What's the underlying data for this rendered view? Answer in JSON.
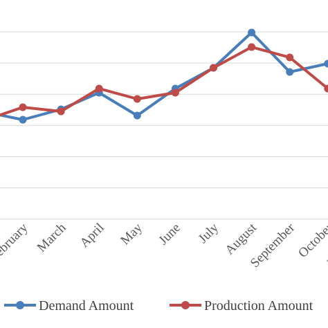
{
  "chart_data": {
    "type": "line",
    "title": "",
    "xlabel": "",
    "ylabel": "",
    "categories": [
      "February",
      "March",
      "April",
      "May",
      "June",
      "July",
      "August",
      "September",
      "October",
      "November"
    ],
    "series": [
      {
        "name": "Demand Amount",
        "color": "#4a7ebb",
        "values": [
          2.5,
          3.0,
          3.8,
          2.7,
          4.0,
          5.0,
          6.7,
          4.8,
          5.2,
          null
        ]
      },
      {
        "name": "Production Amount",
        "color": "#be4b48",
        "values": [
          3.1,
          2.9,
          4.0,
          3.5,
          3.8,
          5.0,
          6.0,
          5.5,
          4.0,
          null
        ]
      }
    ],
    "ylim": [
      -2,
      9
    ],
    "grid": true,
    "legend_position": "bottom"
  }
}
